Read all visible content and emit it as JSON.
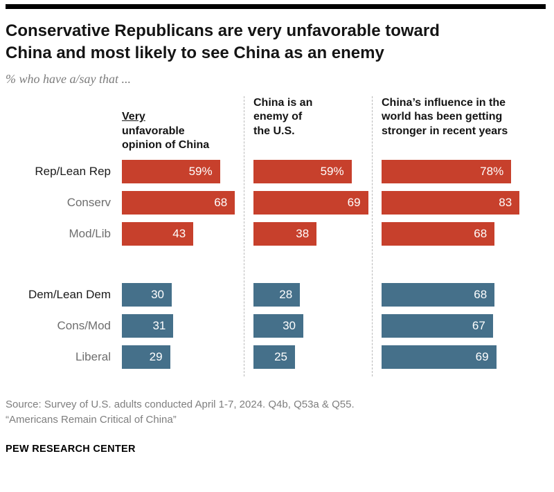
{
  "page": {
    "title_lines": [
      "Conservative Republicans are very unfavorable toward",
      "China and most likely to see China as an enemy"
    ],
    "subtitle": "% who have a/say that ...",
    "source_lines": [
      "Source: Survey of U.S. adults conducted April 1-7, 2024. Q4b, Q53a & Q55.",
      "“Americans Remain Critical of China”"
    ],
    "footer": "PEW RESEARCH CENTER"
  },
  "chart_data": {
    "type": "bar",
    "orientation": "horizontal",
    "unit": "%",
    "xlim": [
      0,
      100
    ],
    "grid": "off",
    "legend": "none",
    "title": "Conservative Republicans are very unfavorable toward China and most likely to see China as an enemy",
    "subtitle": "% who have a/say that ...",
    "columns": [
      {
        "name": "Very unfavorable opinion of China",
        "underlined_word": "Very",
        "rest_lines": [
          "unfavorable",
          "opinion of China"
        ]
      },
      {
        "name": "China is an enemy of the U.S.",
        "lines": [
          "China is an",
          "enemy of",
          "the U.S."
        ]
      },
      {
        "name": "China’s influence in the world has been getting stronger in recent years",
        "lines": [
          "China’s influence in the",
          "world has been getting",
          "stronger in recent years"
        ]
      }
    ],
    "rows": [
      {
        "label": "Rep/Lean Rep",
        "group": "republican",
        "emphasis": "strong"
      },
      {
        "label": "Conserv",
        "group": "republican",
        "emphasis": "muted"
      },
      {
        "label": "Mod/Lib",
        "group": "republican",
        "emphasis": "muted"
      },
      {
        "label": "Dem/Lean Dem",
        "group": "democrat",
        "emphasis": "strong"
      },
      {
        "label": "Cons/Mod",
        "group": "democrat",
        "emphasis": "muted"
      },
      {
        "label": "Liberal",
        "group": "democrat",
        "emphasis": "muted"
      }
    ],
    "colors": {
      "republican": "#C7402C",
      "democrat": "#45708A"
    },
    "series": [
      {
        "name": "Very unfavorable opinion of China",
        "values": [
          59,
          68,
          43,
          30,
          31,
          29
        ],
        "labels": [
          "59%",
          "68",
          "43",
          "30",
          "31",
          "29"
        ]
      },
      {
        "name": "China is an enemy of the U.S.",
        "values": [
          59,
          69,
          38,
          28,
          30,
          25
        ],
        "labels": [
          "59%",
          "69",
          "38",
          "28",
          "30",
          "25"
        ]
      },
      {
        "name": "China’s influence in the world has been getting stronger in recent years",
        "values": [
          78,
          83,
          68,
          68,
          67,
          69
        ],
        "labels": [
          "78%",
          "83",
          "68",
          "68",
          "67",
          "69"
        ]
      }
    ]
  }
}
